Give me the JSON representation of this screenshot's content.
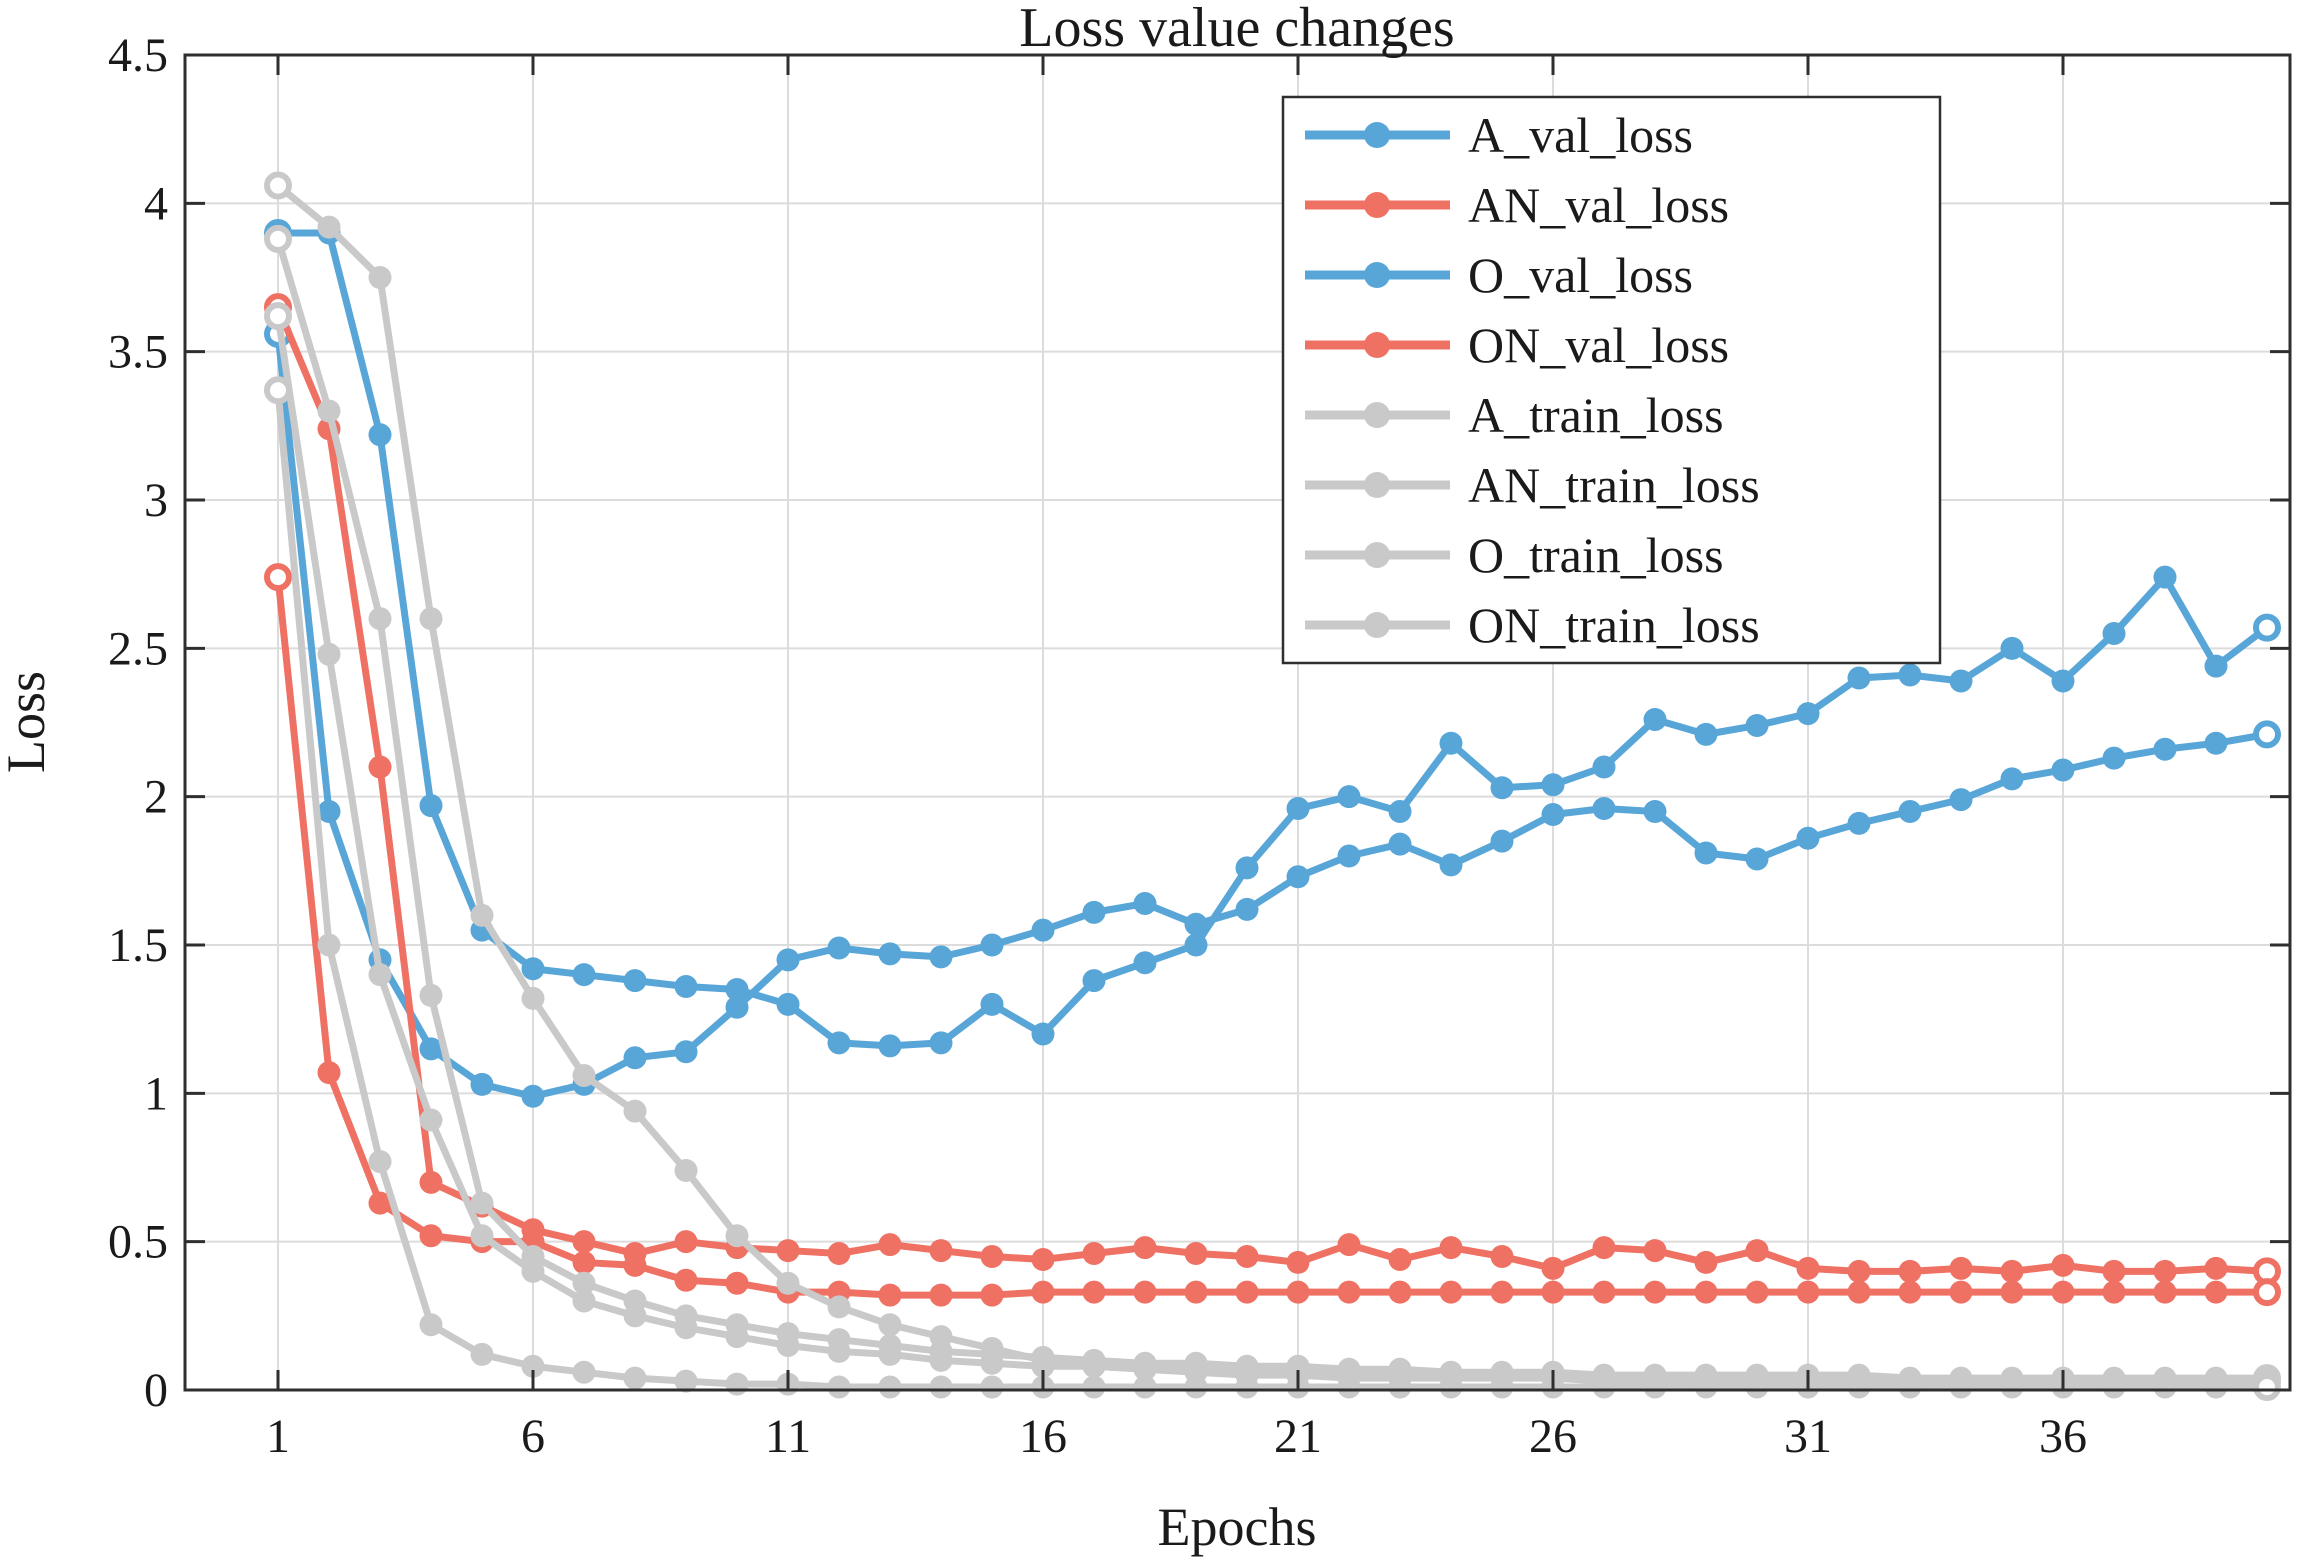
{
  "title": "Loss value changes",
  "x_axis_label": "Epochs",
  "y_axis_label": "Loss",
  "chart_data": {
    "type": "line",
    "title": "Loss value changes",
    "xlabel": "Epochs",
    "ylabel": "Loss",
    "xlim": [
      1,
      40
    ],
    "ylim": [
      0,
      4.5
    ],
    "grid": true,
    "legend_position": "top-right",
    "x_ticks": [
      1,
      6,
      11,
      16,
      21,
      26,
      31,
      36
    ],
    "y_ticks": [
      0,
      0.5,
      1,
      1.5,
      2,
      2.5,
      3,
      3.5,
      4,
      4.5
    ],
    "y_tick_labels": [
      "0",
      "0.5",
      "1",
      "1.5",
      "2",
      "2.5",
      "3",
      "3.5",
      "4",
      "4.5"
    ],
    "x": [
      1,
      2,
      3,
      4,
      5,
      6,
      7,
      8,
      9,
      10,
      11,
      12,
      13,
      14,
      15,
      16,
      17,
      18,
      19,
      20,
      21,
      22,
      23,
      24,
      25,
      26,
      27,
      28,
      29,
      30,
      31,
      32,
      33,
      34,
      35,
      36,
      37,
      38,
      39,
      40
    ],
    "palette": {
      "val_blue": "#58A5D8",
      "val_red": "#EF7163",
      "train_gray": "#C9C9C9",
      "axis": "#2f2f2f",
      "grid": "#dcdcdc"
    },
    "series": [
      {
        "name": "A_val_loss",
        "color": "#58A5D8",
        "values": [
          3.56,
          1.95,
          1.45,
          1.15,
          1.03,
          0.99,
          1.03,
          1.12,
          1.14,
          1.29,
          1.45,
          1.49,
          1.47,
          1.46,
          1.5,
          1.55,
          1.61,
          1.64,
          1.57,
          1.62,
          1.73,
          1.8,
          1.84,
          1.77,
          1.85,
          1.94,
          1.96,
          1.95,
          1.81,
          1.79,
          1.86,
          1.91,
          1.95,
          1.99,
          2.06,
          2.09,
          2.13,
          2.16,
          2.18,
          2.21
        ]
      },
      {
        "name": "AN_val_loss",
        "color": "#EF7163",
        "values": [
          3.65,
          3.24,
          2.1,
          0.7,
          0.62,
          0.54,
          0.5,
          0.46,
          0.5,
          0.48,
          0.47,
          0.46,
          0.49,
          0.47,
          0.45,
          0.44,
          0.46,
          0.48,
          0.46,
          0.45,
          0.43,
          0.49,
          0.44,
          0.48,
          0.45,
          0.41,
          0.48,
          0.47,
          0.43,
          0.47,
          0.41,
          0.4,
          0.4,
          0.41,
          0.4,
          0.42,
          0.4,
          0.4,
          0.41,
          0.4
        ]
      },
      {
        "name": "O_val_loss",
        "color": "#58A5D8",
        "values": [
          3.9,
          3.9,
          3.22,
          1.97,
          1.55,
          1.42,
          1.4,
          1.38,
          1.36,
          1.35,
          1.3,
          1.17,
          1.16,
          1.17,
          1.3,
          1.2,
          1.38,
          1.44,
          1.5,
          1.76,
          1.96,
          2.0,
          1.95,
          2.18,
          2.03,
          2.04,
          2.1,
          2.26,
          2.21,
          2.24,
          2.28,
          2.4,
          2.41,
          2.39,
          2.5,
          2.39,
          2.55,
          2.74,
          2.44,
          2.57
        ]
      },
      {
        "name": "ON_val_loss",
        "color": "#EF7163",
        "values": [
          2.74,
          1.07,
          0.63,
          0.52,
          0.5,
          0.5,
          0.43,
          0.42,
          0.37,
          0.36,
          0.33,
          0.33,
          0.32,
          0.32,
          0.32,
          0.33,
          0.33,
          0.33,
          0.33,
          0.33,
          0.33,
          0.33,
          0.33,
          0.33,
          0.33,
          0.33,
          0.33,
          0.33,
          0.33,
          0.33,
          0.33,
          0.33,
          0.33,
          0.33,
          0.33,
          0.33,
          0.33,
          0.33,
          0.33,
          0.33
        ]
      },
      {
        "name": "A_train_loss",
        "color": "#C9C9C9",
        "values": [
          3.88,
          3.3,
          2.6,
          1.33,
          0.63,
          0.45,
          0.36,
          0.3,
          0.25,
          0.22,
          0.19,
          0.17,
          0.15,
          0.13,
          0.12,
          0.11,
          0.1,
          0.09,
          0.09,
          0.08,
          0.08,
          0.07,
          0.07,
          0.06,
          0.06,
          0.06,
          0.05,
          0.05,
          0.05,
          0.05,
          0.05,
          0.05,
          0.04,
          0.04,
          0.04,
          0.04,
          0.04,
          0.04,
          0.04,
          0.04
        ]
      },
      {
        "name": "AN_train_loss",
        "color": "#C9C9C9",
        "values": [
          3.62,
          2.48,
          1.4,
          0.91,
          0.52,
          0.4,
          0.3,
          0.25,
          0.21,
          0.18,
          0.15,
          0.13,
          0.12,
          0.1,
          0.09,
          0.08,
          0.08,
          0.07,
          0.07,
          0.06,
          0.06,
          0.05,
          0.05,
          0.05,
          0.05,
          0.04,
          0.04,
          0.04,
          0.04,
          0.03,
          0.03,
          0.03,
          0.03,
          0.03,
          0.03,
          0.03,
          0.03,
          0.03,
          0.03,
          0.03
        ]
      },
      {
        "name": "O_train_loss",
        "color": "#C9C9C9",
        "values": [
          4.06,
          3.92,
          3.75,
          2.6,
          1.6,
          1.32,
          1.06,
          0.94,
          0.74,
          0.52,
          0.36,
          0.28,
          0.22,
          0.18,
          0.14,
          0.1,
          0.08,
          0.07,
          0.06,
          0.05,
          0.05,
          0.04,
          0.04,
          0.04,
          0.04,
          0.04,
          0.03,
          0.03,
          0.03,
          0.03,
          0.03,
          0.03,
          0.03,
          0.03,
          0.03,
          0.03,
          0.03,
          0.03,
          0.03,
          0.03
        ]
      },
      {
        "name": "ON_train_loss",
        "color": "#C9C9C9",
        "values": [
          3.37,
          1.5,
          0.77,
          0.22,
          0.12,
          0.08,
          0.06,
          0.04,
          0.03,
          0.02,
          0.02,
          0.01,
          0.01,
          0.01,
          0.01,
          0.01,
          0.01,
          0.01,
          0.01,
          0.01,
          0.01,
          0.01,
          0.01,
          0.01,
          0.01,
          0.01,
          0.01,
          0.01,
          0.01,
          0.01,
          0.01,
          0.01,
          0.01,
          0.01,
          0.01,
          0.01,
          0.01,
          0.01,
          0.01,
          0.01
        ]
      }
    ]
  }
}
